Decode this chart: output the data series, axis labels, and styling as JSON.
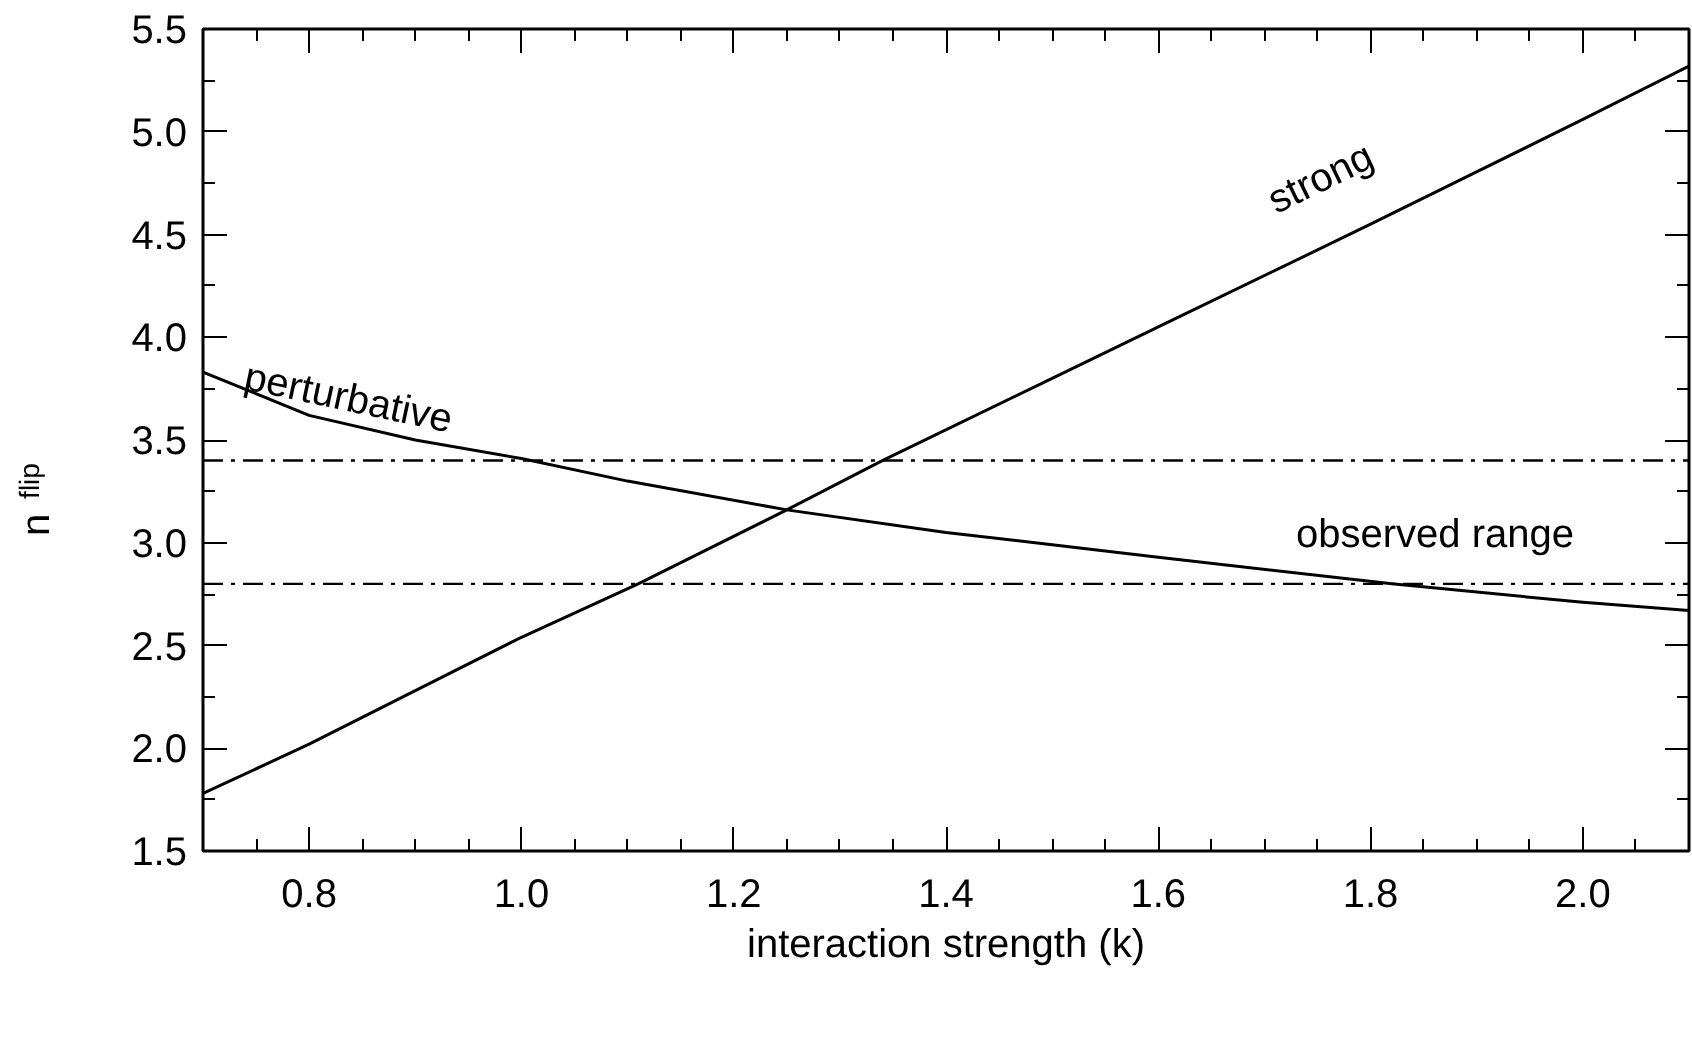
{
  "chart_data": {
    "type": "line",
    "xlabel": "interaction strength (k)",
    "ylabel": "n$_{flip}$",
    "series": [
      {
        "color": "#000000",
        "x": [
          0.7,
          0.8,
          0.9,
          1.0,
          1.11,
          1.25,
          1.34,
          1.5,
          1.6,
          1.8,
          2.0,
          2.1
        ],
        "values": [
          1.78,
          2.02,
          2.28,
          2.54,
          2.8,
          3.16,
          3.4,
          3.8,
          4.05,
          4.55,
          5.06,
          5.32
        ]
      },
      {
        "color": "#000000",
        "x": [
          0.7,
          0.8,
          0.9,
          1.0,
          1.1,
          1.25,
          1.4,
          1.5,
          1.6,
          1.82,
          2.0,
          2.1
        ],
        "values": [
          3.83,
          3.62,
          3.5,
          3.41,
          3.3,
          3.16,
          3.05,
          2.99,
          2.93,
          2.8,
          2.71,
          2.67
        ]
      }
    ],
    "xlim": [
      0.7,
      2.1
    ],
    "ylim": [
      1.5,
      5.5
    ],
    "xticks": [
      0.8,
      {
        "value": 1,
        "label": "1.0"
      },
      1.2,
      1.4,
      1.6,
      1.8,
      {
        "value": 2,
        "label": "2.0"
      }
    ],
    "yticks": [
      1.5,
      {
        "value": 2,
        "label": "2.0"
      },
      2.5,
      {
        "value": 3,
        "label": "3.0"
      },
      3.5,
      {
        "value": 4,
        "label": "4.0"
      },
      4.5,
      {
        "value": 5,
        "label": "5.0"
      },
      5.5
    ],
    "ref_lines": [
      {
        "axis": "y",
        "value": 3.4,
        "color": "#000000",
        "line_style": "dashdot"
      },
      {
        "axis": "y",
        "value": 2.8,
        "color": "#000000",
        "line_style": "dashdot"
      }
    ],
    "annotations": [
      "perturbative",
      "strong",
      "observed range"
    ],
    "grid": false,
    "marker": "none",
    "line_style": "solid"
  }
}
